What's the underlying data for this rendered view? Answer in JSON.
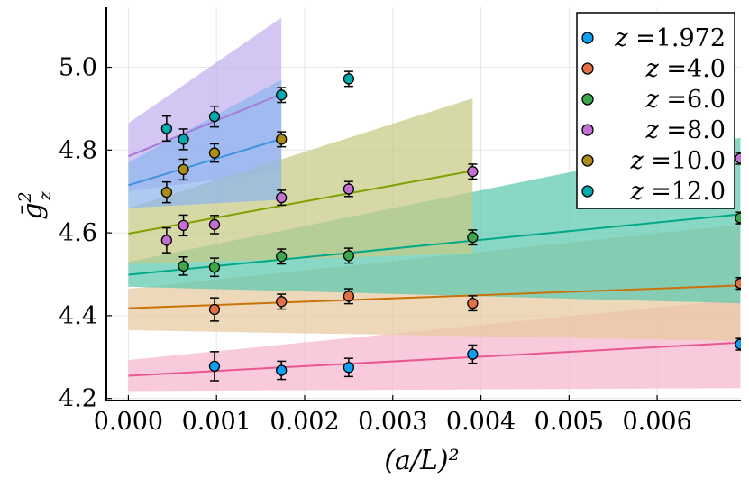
{
  "chart_data": {
    "type": "scatter",
    "title": "",
    "xlabel": "(a/L)²",
    "ylabel": "ḡ²_z",
    "ylabel_parts": {
      "base": "ḡ",
      "sup": "2",
      "sub": "z"
    },
    "xlim": [
      -0.00025,
      0.00695
    ],
    "ylim": [
      4.195,
      5.145
    ],
    "xticks": [
      0.0,
      0.001,
      0.002,
      0.003,
      0.004,
      0.005,
      0.006
    ],
    "xtick_labels": [
      "0.000",
      "0.001",
      "0.002",
      "0.003",
      "0.004",
      "0.005",
      "0.006"
    ],
    "yticks": [
      4.2,
      4.4,
      4.6,
      4.8,
      5.0
    ],
    "ytick_labels": [
      "4.2",
      "4.4",
      "4.6",
      "4.8",
      "5.0"
    ],
    "grid": true,
    "legend_position": "top-right",
    "series": [
      {
        "name": "z =1.972",
        "legend_prefix": "z =",
        "legend_value": "1.972",
        "color": "#0b9ff0",
        "fit_color": "#e8588f",
        "band_color": "#f6b6cd",
        "x": [
          0.000977,
          0.001736,
          0.0025,
          0.003906,
          0.006944
        ],
        "y": [
          4.278,
          4.268,
          4.275,
          4.307,
          4.331
        ],
        "yerr": [
          0.035,
          0.022,
          0.022,
          0.022,
          0.014
        ],
        "fit": {
          "x": [
            0.0,
            0.006944
          ],
          "y": [
            4.255,
            4.335
          ]
        },
        "band": {
          "x": [
            0.0,
            0.006944
          ],
          "lower": [
            4.218,
            4.225
          ],
          "upper": [
            4.293,
            4.44
          ]
        }
      },
      {
        "name": "z =4.0",
        "legend_prefix": "z =",
        "legend_value": "4.0",
        "color": "#e26f46",
        "fit_color": "#c8730a",
        "band_color": "#e8c9a0",
        "x": [
          0.000977,
          0.001736,
          0.0025,
          0.003906,
          0.006944
        ],
        "y": [
          4.415,
          4.434,
          4.447,
          4.43,
          4.478
        ],
        "yerr": [
          0.028,
          0.018,
          0.018,
          0.018,
          0.014
        ],
        "fit": {
          "x": [
            0.0,
            0.006944
          ],
          "y": [
            4.418,
            4.473
          ]
        },
        "band": {
          "x": [
            0.0,
            0.006944
          ],
          "lower": [
            4.365,
            4.339
          ],
          "upper": [
            4.465,
            4.62
          ]
        }
      },
      {
        "name": "z =6.0",
        "legend_prefix": "z =",
        "legend_value": "6.0",
        "color": "#3ba64c",
        "fit_color": "#00a887",
        "band_color": "#5bc9b0",
        "x": [
          0.000625,
          0.000977,
          0.001736,
          0.0025,
          0.003906,
          0.006944
        ],
        "y": [
          4.52,
          4.517,
          4.543,
          4.545,
          4.589,
          4.636
        ],
        "yerr": [
          0.022,
          0.022,
          0.018,
          0.018,
          0.018,
          0.014
        ],
        "fit": {
          "x": [
            0.0,
            0.006944
          ],
          "y": [
            4.499,
            4.645
          ]
        },
        "band": {
          "x": [
            0.0,
            0.006944
          ],
          "lower": [
            4.47,
            4.43
          ],
          "upper": [
            4.53,
            4.83
          ]
        }
      },
      {
        "name": "z =8.0",
        "legend_prefix": "z =",
        "legend_value": "8.0",
        "color": "#c271d2",
        "fit_color": "#a67bd8",
        "band_color": "#c4b0ee",
        "x": [
          0.000434,
          0.000625,
          0.000977,
          0.001736,
          0.0025,
          0.003906,
          0.006944
        ],
        "y": [
          4.582,
          4.618,
          4.62,
          4.685,
          4.706,
          4.748,
          4.78
        ],
        "yerr": [
          0.03,
          0.025,
          0.022,
          0.018,
          0.018,
          0.018,
          0.014
        ],
        "fit": {
          "x": [
            0.0,
            0.001736
          ],
          "y": [
            4.785,
            4.935
          ]
        },
        "band": {
          "x": [
            0.0,
            0.001736
          ],
          "lower": [
            4.7,
            4.75
          ],
          "upper": [
            4.865,
            5.12
          ]
        }
      },
      {
        "name": "z =10.0",
        "legend_prefix": "z =",
        "legend_value": "10.0",
        "color": "#ac8d18",
        "fit_color": "#7fa000",
        "band_color": "#c6c984",
        "x": [
          0.000434,
          0.000625,
          0.000977,
          0.001736
        ],
        "y": [
          4.698,
          4.753,
          4.793,
          4.826
        ],
        "yerr": [
          0.025,
          0.025,
          0.022,
          0.018
        ],
        "fit": {
          "x": [
            0.0,
            0.003906
          ],
          "y": [
            4.598,
            4.75
          ]
        },
        "band": {
          "x": [
            0.0,
            0.003906
          ],
          "lower": [
            4.525,
            4.55
          ],
          "upper": [
            4.66,
            4.925
          ]
        }
      },
      {
        "name": "z =12.0",
        "legend_prefix": "z =",
        "legend_value": "12.0",
        "color": "#00a9ad",
        "fit_color": "#3c94dc",
        "band_color": "#8db5ee",
        "x": [
          0.000434,
          0.000625,
          0.000977,
          0.001736,
          0.0025
        ],
        "y": [
          4.852,
          4.826,
          4.881,
          4.933,
          4.972
        ],
        "yerr": [
          0.03,
          0.025,
          0.025,
          0.018,
          0.018
        ],
        "fit": {
          "x": [
            0.0,
            0.001736
          ],
          "y": [
            4.715,
            4.827
          ]
        },
        "band": {
          "x": [
            0.0,
            0.001736
          ],
          "lower": [
            4.66,
            4.68
          ],
          "upper": [
            4.77,
            4.97
          ]
        }
      }
    ]
  }
}
